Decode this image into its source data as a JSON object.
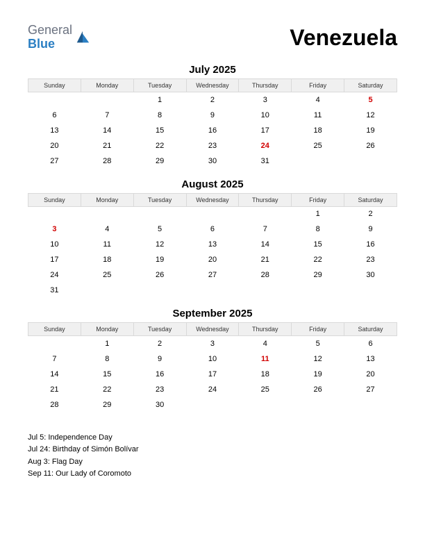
{
  "logo": {
    "general": "General",
    "blue": "Blue"
  },
  "country": "Venezuela",
  "dayHeaders": [
    "Sunday",
    "Monday",
    "Tuesday",
    "Wednesday",
    "Thursday",
    "Friday",
    "Saturday"
  ],
  "colors": {
    "holiday": "#d10000",
    "headerBg": "#f0f0f0",
    "headerBorder": "#d9d9d9",
    "logoGray": "#6b7280",
    "logoBlue": "#2b7fc3",
    "text": "#000000",
    "background": "#ffffff"
  },
  "months": [
    {
      "title": "July 2025",
      "weeks": [
        [
          {
            "d": ""
          },
          {
            "d": ""
          },
          {
            "d": "1"
          },
          {
            "d": "2"
          },
          {
            "d": "3"
          },
          {
            "d": "4"
          },
          {
            "d": "5",
            "h": true
          }
        ],
        [
          {
            "d": "6"
          },
          {
            "d": "7"
          },
          {
            "d": "8"
          },
          {
            "d": "9"
          },
          {
            "d": "10"
          },
          {
            "d": "11"
          },
          {
            "d": "12"
          }
        ],
        [
          {
            "d": "13"
          },
          {
            "d": "14"
          },
          {
            "d": "15"
          },
          {
            "d": "16"
          },
          {
            "d": "17"
          },
          {
            "d": "18"
          },
          {
            "d": "19"
          }
        ],
        [
          {
            "d": "20"
          },
          {
            "d": "21"
          },
          {
            "d": "22"
          },
          {
            "d": "23"
          },
          {
            "d": "24",
            "h": true
          },
          {
            "d": "25"
          },
          {
            "d": "26"
          }
        ],
        [
          {
            "d": "27"
          },
          {
            "d": "28"
          },
          {
            "d": "29"
          },
          {
            "d": "30"
          },
          {
            "d": "31"
          },
          {
            "d": ""
          },
          {
            "d": ""
          }
        ]
      ]
    },
    {
      "title": "August 2025",
      "weeks": [
        [
          {
            "d": ""
          },
          {
            "d": ""
          },
          {
            "d": ""
          },
          {
            "d": ""
          },
          {
            "d": ""
          },
          {
            "d": "1"
          },
          {
            "d": "2"
          }
        ],
        [
          {
            "d": "3",
            "h": true
          },
          {
            "d": "4"
          },
          {
            "d": "5"
          },
          {
            "d": "6"
          },
          {
            "d": "7"
          },
          {
            "d": "8"
          },
          {
            "d": "9"
          }
        ],
        [
          {
            "d": "10"
          },
          {
            "d": "11"
          },
          {
            "d": "12"
          },
          {
            "d": "13"
          },
          {
            "d": "14"
          },
          {
            "d": "15"
          },
          {
            "d": "16"
          }
        ],
        [
          {
            "d": "17"
          },
          {
            "d": "18"
          },
          {
            "d": "19"
          },
          {
            "d": "20"
          },
          {
            "d": "21"
          },
          {
            "d": "22"
          },
          {
            "d": "23"
          }
        ],
        [
          {
            "d": "24"
          },
          {
            "d": "25"
          },
          {
            "d": "26"
          },
          {
            "d": "27"
          },
          {
            "d": "28"
          },
          {
            "d": "29"
          },
          {
            "d": "30"
          }
        ],
        [
          {
            "d": "31"
          },
          {
            "d": ""
          },
          {
            "d": ""
          },
          {
            "d": ""
          },
          {
            "d": ""
          },
          {
            "d": ""
          },
          {
            "d": ""
          }
        ]
      ]
    },
    {
      "title": "September 2025",
      "weeks": [
        [
          {
            "d": ""
          },
          {
            "d": "1"
          },
          {
            "d": "2"
          },
          {
            "d": "3"
          },
          {
            "d": "4"
          },
          {
            "d": "5"
          },
          {
            "d": "6"
          }
        ],
        [
          {
            "d": "7"
          },
          {
            "d": "8"
          },
          {
            "d": "9"
          },
          {
            "d": "10"
          },
          {
            "d": "11",
            "h": true
          },
          {
            "d": "12"
          },
          {
            "d": "13"
          }
        ],
        [
          {
            "d": "14"
          },
          {
            "d": "15"
          },
          {
            "d": "16"
          },
          {
            "d": "17"
          },
          {
            "d": "18"
          },
          {
            "d": "19"
          },
          {
            "d": "20"
          }
        ],
        [
          {
            "d": "21"
          },
          {
            "d": "22"
          },
          {
            "d": "23"
          },
          {
            "d": "24"
          },
          {
            "d": "25"
          },
          {
            "d": "26"
          },
          {
            "d": "27"
          }
        ],
        [
          {
            "d": "28"
          },
          {
            "d": "29"
          },
          {
            "d": "30"
          },
          {
            "d": ""
          },
          {
            "d": ""
          },
          {
            "d": ""
          },
          {
            "d": ""
          }
        ]
      ]
    }
  ],
  "holidays": [
    "Jul 5: Independence Day",
    "Jul 24: Birthday of Simón Bolívar",
    "Aug 3: Flag Day",
    "Sep 11: Our Lady of Coromoto"
  ]
}
